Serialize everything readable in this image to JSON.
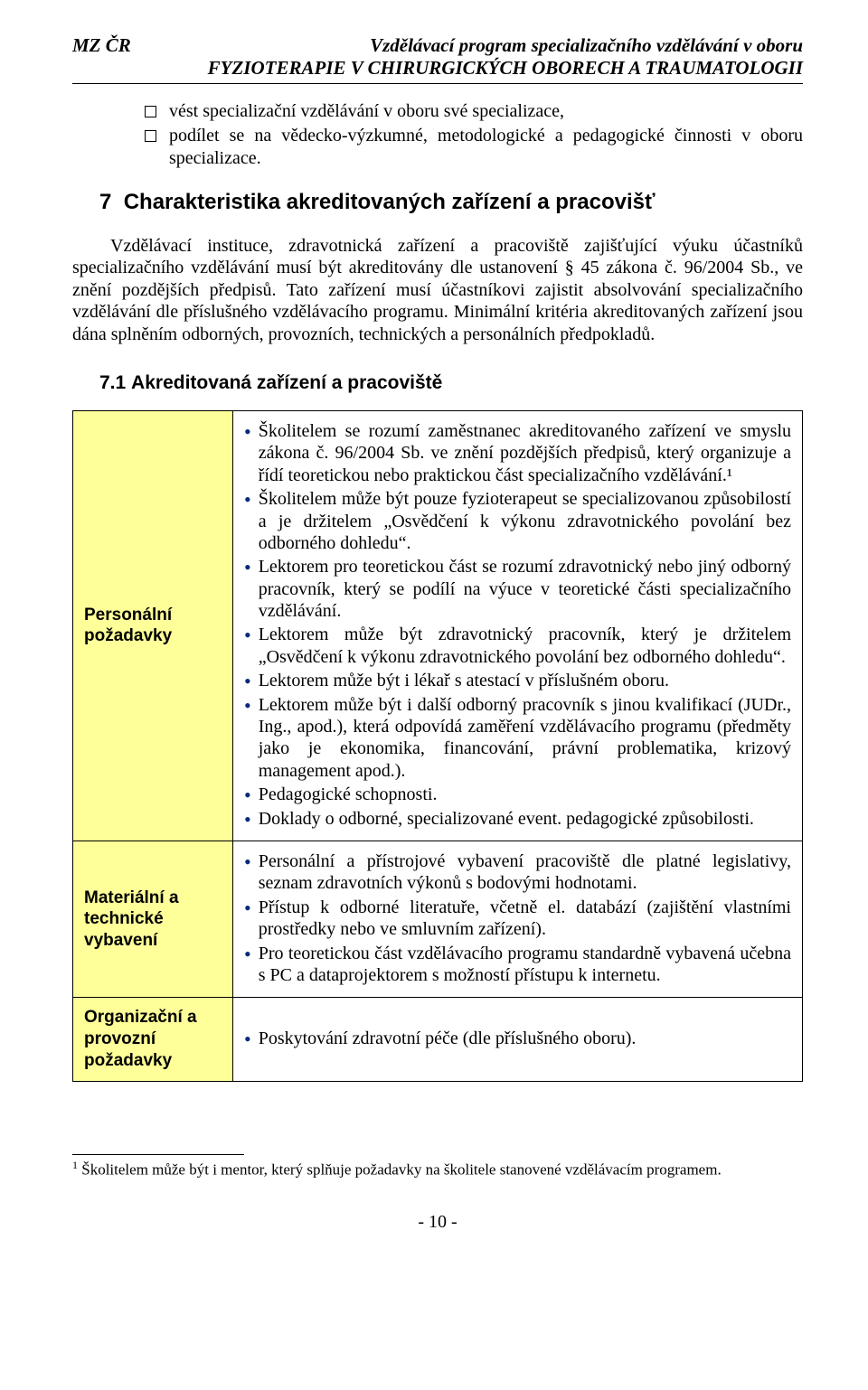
{
  "header": {
    "left": "MZ ČR",
    "right": "Vzdělávací program specializačního vzdělávání v oboru",
    "line2": "FYZIOTERAPIE V CHIRURGICKÝCH OBORECH A TRAUMATOLOGII"
  },
  "intro_bullets": [
    "vést specializační vzdělávání v oboru své specializace,",
    "podílet se na vědecko-výzkumné, metodologické a pedagogické činnosti v oboru specializace."
  ],
  "section7": {
    "number": "7",
    "title": "Charakteristika akreditovaných zařízení a pracovišť",
    "para": "Vzdělávací instituce, zdravotnická zařízení a pracoviště zajišťující výuku účastníků specializačního vzdělávání musí být akreditovány dle ustanovení § 45 zákona č. 96/2004 Sb., ve znění pozdějších předpisů. Tato zařízení musí účastníkovi zajistit absolvování specializačního vzdělávání dle příslušného vzdělávacího programu. Minimální kritéria akreditovaných zařízení jsou dána splněním odborných, provozních, technických a personálních předpokladů."
  },
  "section7_1": {
    "number": "7.1",
    "title": "Akreditovaná zařízení a pracoviště"
  },
  "rows": [
    {
      "label": "Personální požadavky",
      "items": [
        "Školitelem se rozumí zaměstnanec akreditovaného zařízení ve smyslu zákona č. 96/2004 Sb. ve znění pozdějších předpisů, který organizuje a řídí teoretickou nebo praktickou část specializačního vzdělávání.¹",
        "Školitelem může být pouze fyzioterapeut se specializovanou způsobilostí a je držitelem „Osvědčení k výkonu zdravotnického povolání bez odborného dohledu“.",
        "Lektorem pro teoretickou část se rozumí zdravotnický nebo jiný odborný pracovník, který se podílí na výuce v teoretické části specializačního vzdělávání.",
        "Lektorem může být zdravotnický pracovník, který je držitelem „Osvědčení k výkonu zdravotnického povolání bez odborného dohledu“.",
        "Lektorem může být i lékař s atestací v příslušném oboru.",
        "Lektorem může být i další odborný pracovník s jinou kvalifikací (JUDr., Ing., apod.), která odpovídá zaměření vzdělávacího programu (předměty jako je ekonomika, financování, právní problematika, krizový management apod.).",
        "Pedagogické schopnosti.",
        "Doklady o odborné, specializované event. pedagogické způsobilosti."
      ]
    },
    {
      "label": "Materiální a technické vybavení",
      "items": [
        "Personální a přístrojové vybavení pracoviště dle platné legislativy, seznam zdravotních výkonů s bodovými hodnotami.",
        "Přístup k odborné literatuře, včetně el. databází (zajištění vlastními prostředky nebo ve smluvním zařízení).",
        "Pro teoretickou část vzdělávacího programu standardně vybavená učebna s PC a dataprojektorem s možností přístupu k internetu."
      ]
    },
    {
      "label": "Organizační a provozní požadavky",
      "items": [
        "Poskytování zdravotní péče (dle příslušného oboru)."
      ]
    }
  ],
  "footnote": {
    "marker": "1",
    "text": "Školitelem může být i mentor, který splňuje požadavky na školitele stanovené vzdělávacím programem."
  },
  "page_number": "- 10 -",
  "colors": {
    "label_bg": "#ffff99",
    "bullet_color": "#0a2a7a",
    "text": "#000000",
    "background": "#ffffff",
    "border": "#000000"
  },
  "fonts": {
    "body": "Times New Roman",
    "heading": "Arial",
    "body_size_pt": 15,
    "heading_size_pt": 17
  }
}
